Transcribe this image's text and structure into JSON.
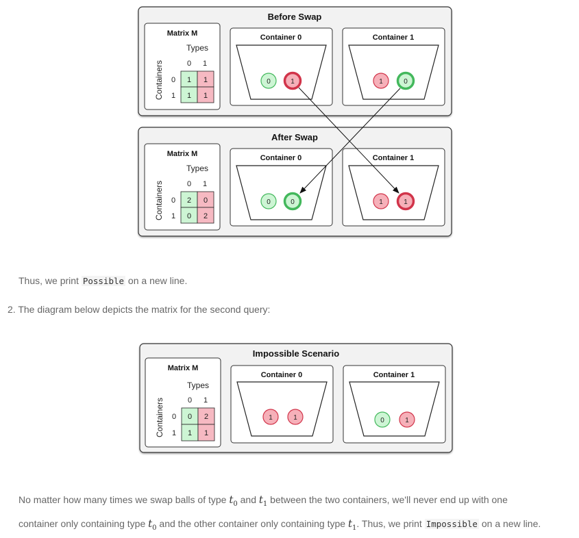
{
  "panels": {
    "before": {
      "title": "Before Swap",
      "matrix_title": "Matrix M",
      "matrix_values": [
        [
          "1",
          "1"
        ],
        [
          "1",
          "1"
        ]
      ],
      "container0": "Container 0",
      "container1": "Container 1",
      "c0_balls": [
        "0",
        "1"
      ],
      "c1_balls": [
        "1",
        "0"
      ]
    },
    "after": {
      "title": "After Swap",
      "matrix_title": "Matrix M",
      "matrix_values": [
        [
          "2",
          "0"
        ],
        [
          "0",
          "2"
        ]
      ],
      "container0": "Container 0",
      "container1": "Container 1",
      "c0_balls": [
        "0",
        "0"
      ],
      "c1_balls": [
        "1",
        "1"
      ]
    },
    "impossible": {
      "title": "Impossible Scenario",
      "matrix_title": "Matrix M",
      "matrix_values": [
        [
          "0",
          "2"
        ],
        [
          "1",
          "1"
        ]
      ],
      "container0": "Container 0",
      "container1": "Container 1",
      "c0_balls": [
        "1",
        "1"
      ],
      "c1_balls": [
        "0",
        "1"
      ]
    }
  },
  "matrix_labels": {
    "types": "Types",
    "containers": "Containers",
    "col0": "0",
    "col1": "1",
    "row0": "0",
    "row1": "1"
  },
  "prose": {
    "p1_before": "Thus, we print ",
    "p1_code": "Possible",
    "p1_after": " on a new line.",
    "item2": "2. The diagram below depicts the matrix for the second query:",
    "p3_a": "No matter how many times we swap balls of type ",
    "t0": "t",
    "sub0": "0",
    "p3_and": " and ",
    "t1": "t",
    "sub1": "1",
    "p3_b": " between the two containers, we'll never end up with one",
    "p3_c": "container only containing type ",
    "p3_d": " and the other container only containing type ",
    "p3_e": ". Thus, we print ",
    "p3_code": "Impossible",
    "p3_f": " on a new line."
  },
  "colors": {
    "green_fill": "#cdf5d4",
    "green_stroke": "#43b85c",
    "red_fill": "#f6b0b9",
    "red_stroke": "#d1344a",
    "cell_green": "#cdf5d4",
    "cell_red": "#f6b9c2"
  }
}
